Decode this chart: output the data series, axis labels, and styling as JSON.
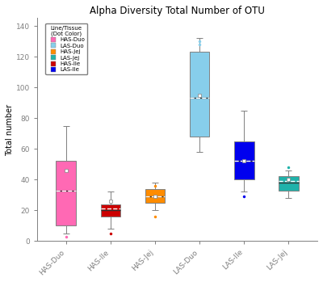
{
  "title": "Alpha Diversity Total Number of OTU",
  "ylabel": "Total number",
  "xlabel": "",
  "categories": [
    "HAS-Duo",
    "HAS-Ile",
    "HAS-Jej",
    "LAS-Duo",
    "LAS-Ile",
    "LAS-Jej"
  ],
  "legend_title": "Line/Tissue\n(Dot Color)",
  "legend_labels": [
    "HAS-Duo",
    "LAS-Duo",
    "HAS-Jej",
    "LAS-Jej",
    "HAS-Ile",
    "LAS-Ile"
  ],
  "legend_colors": [
    "#FF69B4",
    "#87CEEB",
    "#FF8C00",
    "#20B2AA",
    "#CC0000",
    "#0000EE"
  ],
  "ylim": [
    0,
    145
  ],
  "yticks": [
    0,
    20,
    40,
    60,
    80,
    100,
    120,
    140
  ],
  "boxes": [
    {
      "label": "HAS-Duo",
      "color": "#FF69B4",
      "whislo": 5,
      "q1": 10,
      "med": 33,
      "mean": 33,
      "q3": 52,
      "whishi": 75,
      "fliers_low": [
        3
      ],
      "fliers_high": [],
      "inner_dot": 46
    },
    {
      "label": "HAS-Ile",
      "color": "#CC0000",
      "whislo": 8,
      "q1": 16,
      "med": 20,
      "mean": 21,
      "q3": 24,
      "whishi": 32,
      "fliers_low": [
        5
      ],
      "fliers_high": [],
      "inner_dot": 26
    },
    {
      "label": "HAS-Jej",
      "color": "#FF8C00",
      "whislo": 20,
      "q1": 25,
      "med": 29,
      "mean": 29,
      "q3": 34,
      "whishi": 38,
      "fliers_low": [
        16
      ],
      "fliers_high": [
        36
      ],
      "inner_dot": 29
    },
    {
      "label": "LAS-Duo",
      "color": "#87CEEB",
      "whislo": 58,
      "q1": 68,
      "med": 93,
      "mean": 93,
      "q3": 123,
      "whishi": 132,
      "fliers_low": [],
      "fliers_high": [
        130,
        128
      ],
      "inner_dot": 95
    },
    {
      "label": "LAS-Ile",
      "color": "#0000EE",
      "whislo": 32,
      "q1": 40,
      "med": 52,
      "mean": 52,
      "q3": 65,
      "whishi": 85,
      "fliers_low": [
        29
      ],
      "fliers_high": [],
      "inner_dot": 52
    },
    {
      "label": "LAS-Jej",
      "color": "#20B2AA",
      "whislo": 28,
      "q1": 33,
      "med": 38,
      "mean": 39,
      "q3": 42,
      "whishi": 46,
      "fliers_high": [
        48
      ],
      "fliers_low": [],
      "inner_dot": 40
    }
  ]
}
